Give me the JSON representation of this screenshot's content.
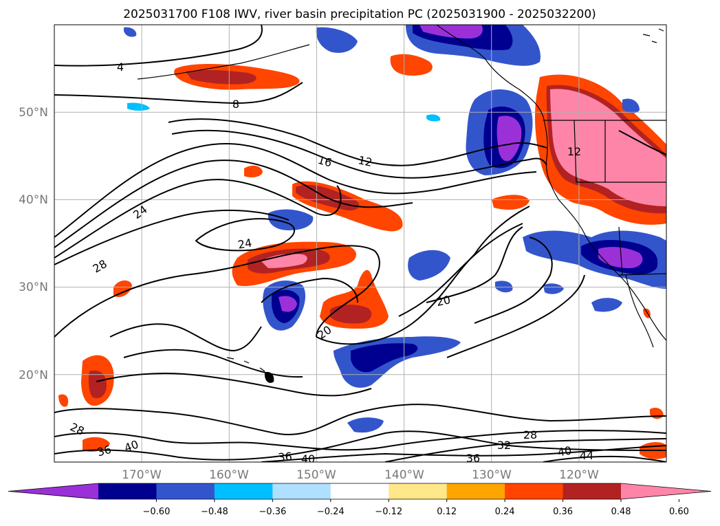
{
  "title": "2025031700 F108 IWV, river basin precipitation PC (2025031900 - 2025032200)",
  "map": {
    "lon_range": [
      -180,
      -110
    ],
    "lat_range": [
      10,
      60
    ],
    "projection": "PlateCarree",
    "lat_ticks": [
      {
        "value": 20,
        "label": "20°N"
      },
      {
        "value": 30,
        "label": "30°N"
      },
      {
        "value": 40,
        "label": "40°N"
      },
      {
        "value": 50,
        "label": "50°N"
      }
    ],
    "lon_ticks": [
      {
        "value": -170,
        "label": "170°W"
      },
      {
        "value": -160,
        "label": "160°W"
      },
      {
        "value": -150,
        "label": "150°W"
      },
      {
        "value": -140,
        "label": "140°W"
      },
      {
        "value": -130,
        "label": "130°W"
      },
      {
        "value": -120,
        "label": "120°W"
      }
    ],
    "gridlines": true
  },
  "contour_labels": [
    "4",
    "8",
    "12",
    "16",
    "24",
    "28",
    "24",
    "20",
    "20",
    "28",
    "36",
    "40",
    "36",
    "40",
    "36",
    "32",
    "28",
    "40",
    "44",
    "12"
  ],
  "colorbar": {
    "extend": "both",
    "orientation": "horizontal",
    "colors": [
      "#9b30d9",
      "#000090",
      "#3355cc",
      "#00bfff",
      "#b0e0ff",
      "#ffffff",
      "#ffe88a",
      "#ffa500",
      "#ff4500",
      "#b22222",
      "#ff85a8"
    ],
    "ticks": [
      "−0.60",
      "−0.48",
      "−0.36",
      "−0.24",
      "−0.12",
      "0.12",
      "0.24",
      "0.36",
      "0.48",
      "0.60"
    ]
  },
  "colors": {
    "contour": "#000000",
    "coast": "#000000",
    "grid": "#b0b0b0",
    "tick_label": "#777777"
  }
}
